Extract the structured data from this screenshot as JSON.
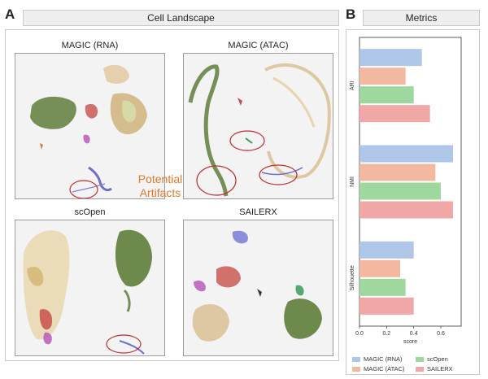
{
  "panelA": {
    "letter": "A",
    "header": "Cell Landscape",
    "umaps": [
      {
        "title": "MAGIC (RNA)"
      },
      {
        "title": "MAGIC (ATAC)"
      },
      {
        "title": "scOpen"
      },
      {
        "title": "SAILERX"
      }
    ],
    "annotation": {
      "line1": "Potential",
      "line2": "Artifacts"
    }
  },
  "panelB": {
    "letter": "B",
    "header": "Metrics"
  },
  "colors": {
    "MAGIC (RNA)": "#aec7e8",
    "MAGIC (ATAC)": "#f2b9a0",
    "scOpen": "#9fd89f",
    "SAILERX": "#f2a7a7"
  },
  "chart_data": {
    "type": "bar",
    "orientation": "horizontal",
    "categories": [
      "ARI",
      "NMI",
      "Silhouette"
    ],
    "series": [
      {
        "name": "MAGIC (RNA)",
        "values": [
          0.46,
          0.69,
          0.4
        ]
      },
      {
        "name": "MAGIC (ATAC)",
        "values": [
          0.34,
          0.56,
          0.3
        ]
      },
      {
        "name": "scOpen",
        "values": [
          0.4,
          0.6,
          0.34
        ]
      },
      {
        "name": "SAILERX",
        "values": [
          0.52,
          0.69,
          0.4
        ]
      }
    ],
    "xlabel": "score",
    "xlim": [
      0,
      0.75
    ],
    "xticks": [
      "0.0",
      "0.2",
      "0.4",
      "0.6"
    ],
    "legend": "bottom"
  }
}
